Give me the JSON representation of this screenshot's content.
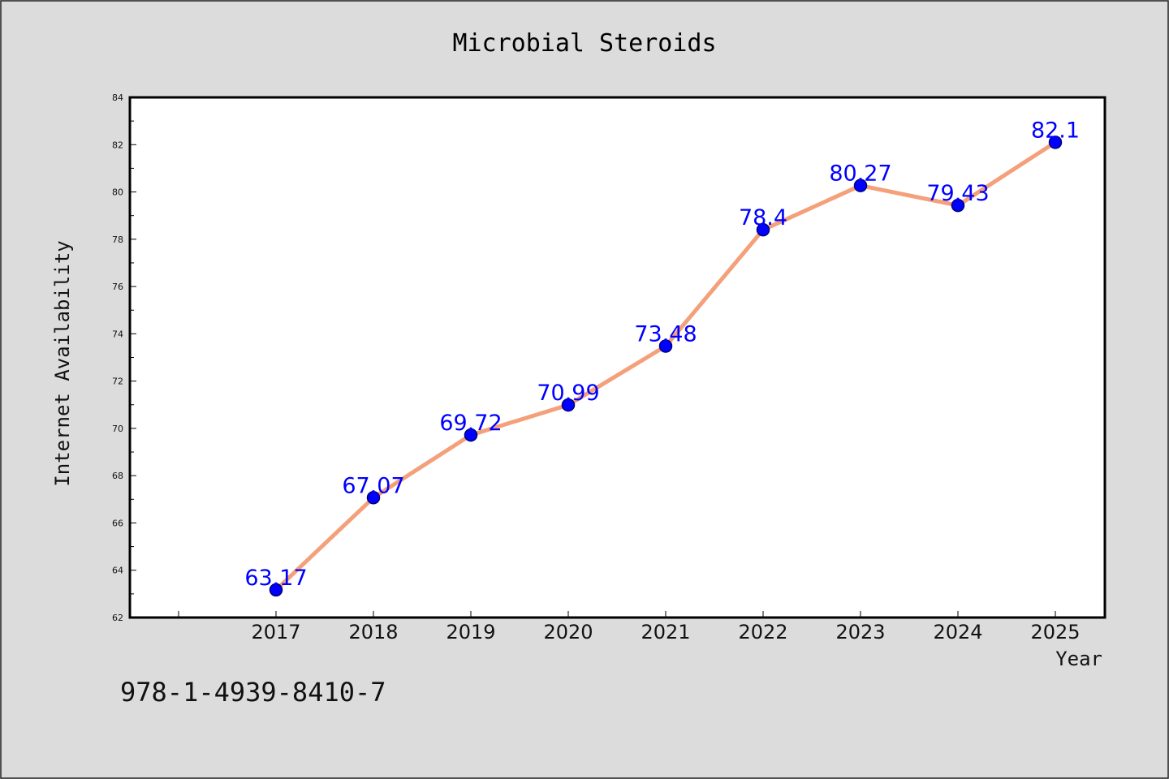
{
  "chart_data": {
    "type": "line",
    "title": "Microbial Steroids",
    "xlabel": "Year",
    "ylabel": "Internet Availability",
    "categories": [
      "2017",
      "2018",
      "2019",
      "2020",
      "2021",
      "2022",
      "2023",
      "2024",
      "2025"
    ],
    "series": [
      {
        "values": [
          63.17,
          67.07,
          69.72,
          70.99,
          73.48,
          78.4,
          80.27,
          79.43,
          82.1
        ]
      }
    ],
    "data_labels": [
      "63.17",
      "67.07",
      "69.72",
      "70.99",
      "73.48",
      "78.4",
      "80.27",
      "79.43",
      "82.1"
    ],
    "ylim": [
      62,
      84
    ],
    "yticks": [
      62,
      64,
      66,
      68,
      70,
      72,
      74,
      76,
      78,
      80,
      82,
      84
    ],
    "grid": false,
    "legend": "none",
    "colors": {
      "line": "#f4a07a",
      "marker": "#0000ff",
      "marker_edge": "#00007a",
      "data_label": "#0000ff",
      "plot_background": "#ffffff",
      "figure_background": "#dcdcdc"
    }
  },
  "footer": {
    "isbn": "978-1-4939-8410-7"
  }
}
